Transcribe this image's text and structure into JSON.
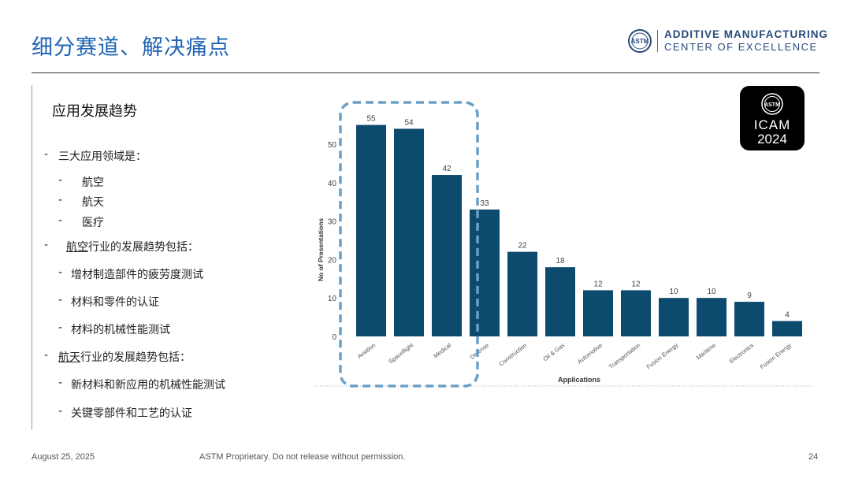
{
  "header": {
    "title": "细分赛道、解决痛点",
    "brand_line1": "ADDITIVE MANUFACTURING",
    "brand_line2": "CENTER OF EXCELLENCE",
    "brand_logo_text": "ASTM"
  },
  "left": {
    "section_title": "应用发展趋势",
    "b1": "三大应用领域是：",
    "b1a": "航空",
    "b1b": "航天",
    "b1c": "医疗",
    "b2_underlined": "航空",
    "b2_rest": "行业的发展趋势包括：",
    "b2a": "增材制造部件的疲劳度测试",
    "b2b": "材料和零件的认证",
    "b2c": "材料的机械性能测试",
    "b3_underlined": "航天",
    "b3_rest": "行业的发展趋势包括：",
    "b3a": "新材料和新应用的机械性能测试",
    "b3b": "关键零部件和工艺的认证",
    "dash": "-"
  },
  "icam": {
    "logo_text": "ASTM",
    "name": "ICAM",
    "year": "2024"
  },
  "chart_data": {
    "type": "bar",
    "categories": [
      "Aviation",
      "Spaceflight",
      "Medical",
      "Defense",
      "Construction",
      "Oil & Gas",
      "Automotive",
      "Transportation",
      "Fusion Energy",
      "Maritime",
      "Electronics",
      "Fusion Energy"
    ],
    "values": [
      55,
      54,
      42,
      33,
      22,
      18,
      12,
      12,
      10,
      10,
      9,
      4
    ],
    "xlabel": "Applications",
    "ylabel": "No of Presentations",
    "ylim": [
      0,
      55
    ],
    "yticks": [
      0,
      10,
      20,
      30,
      40,
      50
    ],
    "data_labels": true,
    "grid": false,
    "bar_color": "#0c4a6e",
    "highlighted_categories": [
      "Aviation",
      "Spaceflight",
      "Medical"
    ]
  },
  "footer": {
    "date": "August 25, 2025",
    "notice": "ASTM Proprietary. Do not release without permission.",
    "page": "24"
  },
  "colors": {
    "title": "#1f63b4",
    "highlight_box": "#6b9fc6"
  }
}
